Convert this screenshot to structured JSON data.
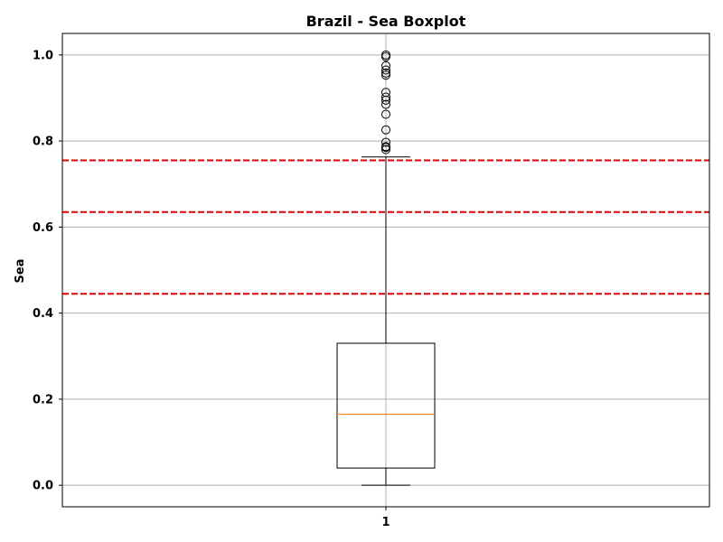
{
  "chart_data": {
    "type": "boxplot",
    "title": "Brazil - Sea Boxplot",
    "xlabel": "",
    "ylabel": "Sea",
    "categories": [
      "1"
    ],
    "ylim": [
      -0.05,
      1.05
    ],
    "yticks": [
      0.0,
      0.2,
      0.4,
      0.6,
      0.8,
      1.0
    ],
    "ytick_labels": [
      "0.0",
      "0.2",
      "0.4",
      "0.6",
      "0.8",
      "1.0"
    ],
    "grid": true,
    "box": {
      "whisker_low": 0.0,
      "q1": 0.04,
      "median": 0.165,
      "q3": 0.33,
      "whisker_high": 0.763
    },
    "outliers": [
      0.78,
      0.785,
      0.787,
      0.797,
      0.826,
      0.862,
      0.885,
      0.895,
      0.902,
      0.913,
      0.953,
      0.958,
      0.965,
      0.975,
      0.996,
      1.0
    ],
    "reference_lines": [
      0.755,
      0.635,
      0.445
    ],
    "colors": {
      "box": "#000000",
      "median": "#ff7f0e",
      "reference_line": "#e00000",
      "grid": "#b0b0b0"
    }
  }
}
